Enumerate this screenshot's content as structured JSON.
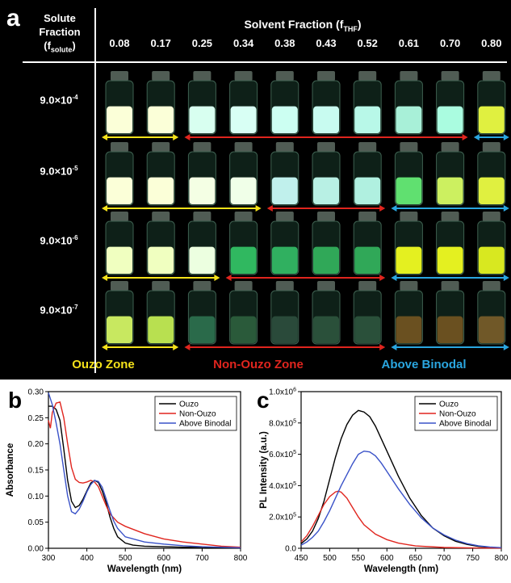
{
  "panel_a": {
    "label": "a",
    "solute_header": [
      "Solute",
      "Fraction",
      "(f",
      "solute",
      ")"
    ],
    "solvent_header": "Solvent Fraction (f",
    "solvent_sub": "THF",
    "solvent_close": ")",
    "fractions": [
      "0.08",
      "0.17",
      "0.25",
      "0.34",
      "0.38",
      "0.43",
      "0.52",
      "0.61",
      "0.70",
      "0.80"
    ],
    "rows": [
      {
        "mant": "9.0×10",
        "exp": "-4",
        "ouzo": [
          0,
          1
        ],
        "nonouzo": [
          2,
          8
        ],
        "binodal": [
          9,
          9
        ]
      },
      {
        "mant": "9.0×10",
        "exp": "-5",
        "ouzo": [
          0,
          3
        ],
        "nonouzo": [
          4,
          6
        ],
        "binodal": [
          7,
          9
        ]
      },
      {
        "mant": "9.0×10",
        "exp": "-6",
        "ouzo": [
          0,
          2
        ],
        "nonouzo": [
          3,
          6
        ],
        "binodal": [
          7,
          9
        ]
      },
      {
        "mant": "9.0×10",
        "exp": "-7",
        "ouzo": [
          0,
          1
        ],
        "nonouzo": [
          2,
          6
        ],
        "binodal": [
          7,
          9
        ]
      }
    ],
    "vial_colors": [
      [
        "#fbffd8",
        "#fbffd8",
        "#d8fff0",
        "#d8fff4",
        "#ccfff2",
        "#c8fbf0",
        "#b8f8e8",
        "#a8f0d8",
        "#aafce0",
        "#e0f040"
      ],
      [
        "#fbffd8",
        "#fbffd8",
        "#f4ffe4",
        "#f0ffe8",
        "#c0f0ec",
        "#b8f0e4",
        "#b0f0e0",
        "#60e070",
        "#ccf060",
        "#e0f040"
      ],
      [
        "#f0ffc0",
        "#f0ffc0",
        "#ecffe0",
        "#30b860",
        "#30b060",
        "#30a858",
        "#30a858",
        "#e4f020",
        "#e4f020",
        "#d8e820"
      ],
      [
        "#c8e860",
        "#b8e050",
        "#2a6a4a",
        "#2a5a3a",
        "#2a4a3a",
        "#2a503a",
        "#2a503a",
        "#6a5020",
        "#6a5020",
        "#705828"
      ]
    ],
    "zones": [
      {
        "name": "Ouzo Zone",
        "color": "#f5e21a"
      },
      {
        "name": "Non-Ouzo Zone",
        "color": "#e0251e"
      },
      {
        "name": "Above Binodal",
        "color": "#2aa6e0"
      }
    ]
  },
  "chart_data": [
    {
      "type": "line",
      "panel": "b",
      "xlabel": "Wavelength (nm)",
      "ylabel": "Absorbance",
      "xlim": [
        300,
        800
      ],
      "ylim": [
        0,
        0.3
      ],
      "xticks": [
        "300",
        "400",
        "500",
        "600",
        "700",
        "800"
      ],
      "yticks": [
        "0.00",
        "0.05",
        "0.10",
        "0.15",
        "0.20",
        "0.25",
        "0.30"
      ],
      "legend": "top-right",
      "series": [
        {
          "name": "Ouzo",
          "color": "#000000",
          "x": [
            300,
            310,
            320,
            330,
            340,
            350,
            360,
            370,
            380,
            390,
            400,
            410,
            420,
            430,
            440,
            450,
            460,
            470,
            480,
            500,
            520,
            550,
            600,
            650,
            700,
            750,
            800
          ],
          "y": [
            0.272,
            0.272,
            0.266,
            0.245,
            0.19,
            0.13,
            0.09,
            0.078,
            0.082,
            0.094,
            0.11,
            0.125,
            0.13,
            0.126,
            0.11,
            0.088,
            0.06,
            0.038,
            0.022,
            0.01,
            0.006,
            0.004,
            0.003,
            0.002,
            0.002,
            0.001,
            0.001
          ]
        },
        {
          "name": "Non-Ouzo",
          "color": "#e0251e",
          "x": [
            300,
            305,
            310,
            320,
            330,
            340,
            350,
            360,
            370,
            380,
            390,
            400,
            410,
            420,
            430,
            440,
            450,
            460,
            480,
            500,
            550,
            600,
            650,
            700,
            750,
            800
          ],
          "y": [
            0.245,
            0.23,
            0.26,
            0.278,
            0.28,
            0.25,
            0.2,
            0.155,
            0.132,
            0.126,
            0.125,
            0.127,
            0.13,
            0.127,
            0.118,
            0.1,
            0.082,
            0.066,
            0.05,
            0.042,
            0.028,
            0.018,
            0.012,
            0.008,
            0.004,
            0.002
          ]
        },
        {
          "name": "Above Binodal",
          "color": "#3a52c8",
          "x": [
            300,
            310,
            320,
            330,
            340,
            350,
            360,
            370,
            380,
            390,
            400,
            410,
            420,
            430,
            440,
            450,
            460,
            470,
            480,
            500,
            550,
            600,
            650,
            700,
            750,
            800
          ],
          "y": [
            0.298,
            0.275,
            0.24,
            0.2,
            0.15,
            0.1,
            0.07,
            0.066,
            0.075,
            0.09,
            0.108,
            0.122,
            0.13,
            0.128,
            0.117,
            0.095,
            0.072,
            0.052,
            0.038,
            0.022,
            0.012,
            0.008,
            0.005,
            0.003,
            0.002,
            0.001
          ]
        }
      ]
    },
    {
      "type": "line",
      "panel": "c",
      "xlabel": "Wavelength (nm)",
      "ylabel": "PL Intensity (a.u.)",
      "xlim": [
        450,
        800
      ],
      "ylim": [
        0,
        1000000
      ],
      "xticks": [
        "450",
        "500",
        "550",
        "600",
        "650",
        "700",
        "750",
        "800"
      ],
      "yticks": [
        {
          "base": "0.0",
          "exp": ""
        },
        {
          "base": "2.0x10",
          "exp": "5"
        },
        {
          "base": "4.0x10",
          "exp": "5"
        },
        {
          "base": "6.0x10",
          "exp": "5"
        },
        {
          "base": "8.0x10",
          "exp": "5"
        },
        {
          "base": "1.0x10",
          "exp": "6"
        }
      ],
      "legend": "top-right",
      "series": [
        {
          "name": "Ouzo",
          "color": "#000000",
          "x": [
            450,
            460,
            470,
            480,
            490,
            500,
            510,
            520,
            530,
            540,
            550,
            560,
            570,
            580,
            590,
            600,
            620,
            640,
            660,
            680,
            700,
            720,
            740,
            760,
            780,
            800
          ],
          "y": [
            30000,
            60000,
            110000,
            190000,
            300000,
            440000,
            580000,
            700000,
            790000,
            850000,
            880000,
            870000,
            840000,
            780000,
            700000,
            620000,
            460000,
            320000,
            210000,
            130000,
            80000,
            45000,
            25000,
            12000,
            6000,
            3000
          ]
        },
        {
          "name": "Non-Ouzo",
          "color": "#e0251e",
          "x": [
            450,
            460,
            470,
            480,
            490,
            500,
            510,
            515,
            520,
            530,
            540,
            550,
            560,
            580,
            600,
            620,
            650,
            700,
            750,
            800
          ],
          "y": [
            40000,
            80000,
            140000,
            210000,
            280000,
            330000,
            360000,
            365000,
            358000,
            320000,
            260000,
            200000,
            150000,
            90000,
            55000,
            33000,
            15000,
            5000,
            2000,
            1000
          ]
        },
        {
          "name": "Above Binodal",
          "color": "#3a52c8",
          "x": [
            450,
            460,
            470,
            480,
            490,
            500,
            510,
            520,
            530,
            540,
            550,
            560,
            570,
            580,
            590,
            600,
            620,
            640,
            660,
            680,
            700,
            720,
            740,
            760,
            780,
            800
          ],
          "y": [
            20000,
            40000,
            70000,
            110000,
            170000,
            240000,
            320000,
            400000,
            470000,
            540000,
            600000,
            620000,
            615000,
            590000,
            545000,
            490000,
            380000,
            280000,
            195000,
            130000,
            85000,
            52000,
            30000,
            16000,
            8000,
            4000
          ]
        }
      ]
    }
  ]
}
